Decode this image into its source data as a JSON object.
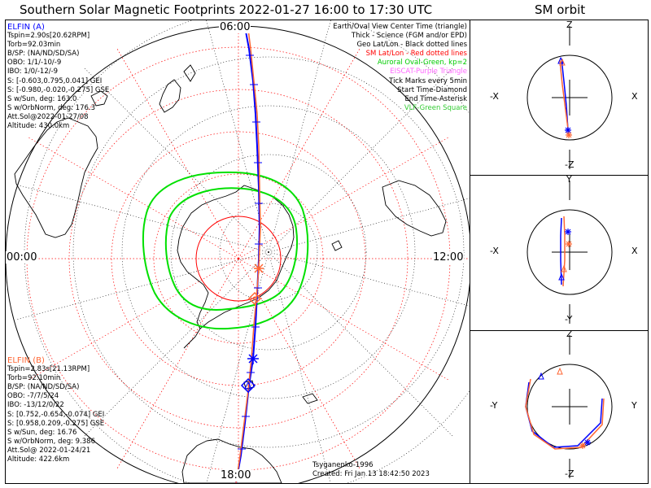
{
  "title": "Southern Solar Magnetic Footprints 2022-01-27 16:00 to 17:30 UTC",
  "orbit_title": "SM orbit",
  "map": {
    "mlt_labels": {
      "top": "06:00",
      "left": "00:00",
      "right": "12:00",
      "bottom": "18:00"
    },
    "legend": [
      {
        "text": "Earth/Oval View Center Time (triangle)",
        "color": "#000000"
      },
      {
        "text": "Thick - Science (FGM and/or EPD)",
        "color": "#000000"
      },
      {
        "text": "Geo Lat/Lon - Black dotted lines",
        "color": "#000000"
      },
      {
        "text": "SM Lat/Lon - Red dotted lines",
        "color": "#ff0000"
      },
      {
        "text": "Auroral Oval-Green, kp=2",
        "color": "#00cc00"
      },
      {
        "text": "EISCAT-Purple Triangle",
        "color": "#ff66ff"
      },
      {
        "text": "Tick Marks every 5min",
        "color": "#000000"
      },
      {
        "text": "Start Time-Diamond",
        "color": "#000000"
      },
      {
        "text": "End Time-Asterisk",
        "color": "#000000"
      },
      {
        "text": "VLF-Green Square",
        "color": "#33cc33"
      }
    ],
    "elfin_a": {
      "name": "ELFIN (A)",
      "color": "#0000ff",
      "lines": [
        "Tspin=2.90s[20.62RPM]",
        "Torb=92.03min",
        "B/SP: (NA/ND/SD/SA)",
        "OBO: 1/1/-10/-9",
        "IBO: 1/0/-12/-9",
        "S: [-0.603,0.795,0.041] GEI",
        "S: [-0.980,-0.020,-0.275] GSE",
        "S w/Sun, deg: 163.0",
        "S w/OrbNorm, deg: 176.3",
        "Att.Sol@2022-01-27/08",
        "Altitude: 430.0km"
      ]
    },
    "elfin_b": {
      "name": "ELFIN (B)",
      "color": "#ff6633",
      "lines": [
        "Tspin=2.83s[21.13RPM]",
        "Torb=92.10min",
        "B/SP: (NA/ND/SD/SA)",
        "OBO: -7/7/5/24",
        "IBO: -13/12/0/22",
        "S: [0.752,-0.654,-0.074] GEI",
        "S: [0.958,0.209,-0.275] GSE",
        "S w/Sun, deg: 16.76",
        "S w/OrbNorm, deg: 9.386",
        "Att.Sol@ 2022-01-24/21",
        "Altitude: 422.6km"
      ]
    },
    "model": "Tsyganenko-1996",
    "created": "Created: Fri Jan 13 18:42:50 2023"
  },
  "orbit_panels": [
    {
      "top": "Z",
      "bottom": "-Z",
      "left": "-X",
      "right": "X"
    },
    {
      "top": "Y",
      "bottom": "-Y",
      "left": "-X",
      "right": "X"
    },
    {
      "top": "Z",
      "bottom": "-Z",
      "left": "-Y",
      "right": "Y"
    }
  ],
  "colors": {
    "elfin_a": "#0000ff",
    "elfin_b": "#ff6633",
    "oval": "#00e000",
    "sm_grid": "#ff0000",
    "geo_grid": "#000000"
  }
}
